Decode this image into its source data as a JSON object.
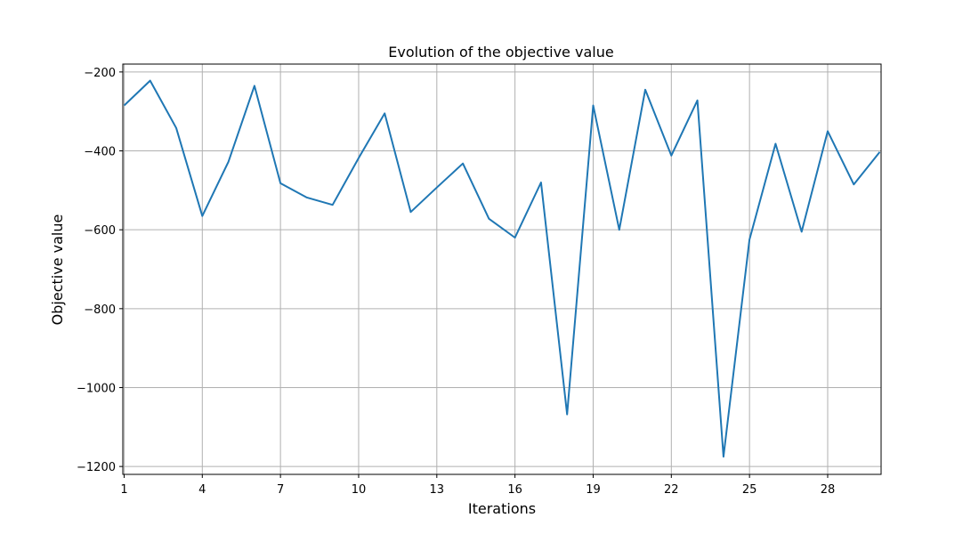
{
  "chart_data": {
    "type": "line",
    "title": "Evolution of the objective value",
    "xlabel": "Iterations",
    "ylabel": "Objective value",
    "grid": true,
    "xlim": [
      1,
      30
    ],
    "ylim": [
      -1220,
      -180
    ],
    "xticks": [
      1,
      4,
      7,
      10,
      13,
      16,
      19,
      22,
      25,
      28
    ],
    "yticks": [
      -200,
      -400,
      -600,
      -800,
      -1000,
      -1200
    ],
    "ytick_labels": [
      "−200",
      "−400",
      "−600",
      "−800",
      "−1000",
      "−1200"
    ],
    "series": [
      {
        "color": "#1f77b4",
        "x": [
          1,
          2,
          3,
          4,
          5,
          6,
          7,
          8,
          9,
          10,
          11,
          12,
          13,
          14,
          15,
          16,
          17,
          18,
          19,
          20,
          21,
          22,
          23,
          24,
          25,
          26,
          27,
          28,
          29,
          30
        ],
        "y": [
          -285,
          -222,
          -342,
          -565,
          -428,
          -235,
          -482,
          -518,
          -537,
          -418,
          -305,
          -555,
          -493,
          -432,
          -572,
          -620,
          -480,
          -1068,
          -285,
          -600,
          -245,
          -412,
          -272,
          -1175,
          -625,
          -382,
          -605,
          -350,
          -485,
          -403
        ]
      }
    ]
  }
}
